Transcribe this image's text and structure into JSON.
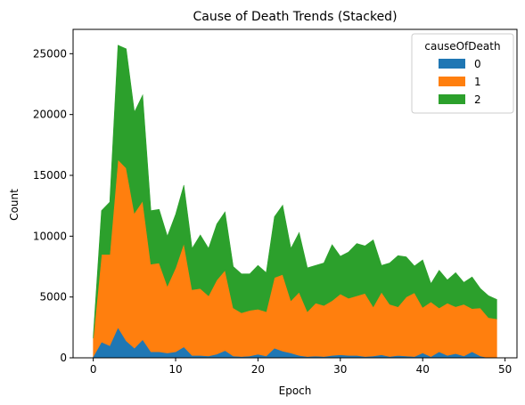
{
  "chart_data": {
    "type": "area",
    "stacked": true,
    "title": "Cause of Death Trends (Stacked)",
    "xlabel": "Epoch",
    "ylabel": "Count",
    "xlim": [
      -2.45,
      51.45
    ],
    "ylim": [
      0,
      27000
    ],
    "xticks": [
      0,
      10,
      20,
      30,
      40,
      50
    ],
    "yticks": [
      0,
      5000,
      10000,
      15000,
      20000,
      25000
    ],
    "grid": false,
    "legend": {
      "title": "causeOfDeath",
      "placement": "top-right"
    },
    "x": [
      0,
      1,
      2,
      3,
      4,
      5,
      6,
      7,
      8,
      9,
      10,
      11,
      12,
      13,
      14,
      15,
      16,
      17,
      18,
      19,
      20,
      21,
      22,
      23,
      24,
      25,
      26,
      27,
      28,
      29,
      30,
      31,
      32,
      33,
      34,
      35,
      36,
      37,
      38,
      39,
      40,
      41,
      42,
      43,
      44,
      45,
      46,
      47,
      48,
      49
    ],
    "series": [
      {
        "name": "0",
        "color": "#1f77b4",
        "values": [
          100,
          1300,
          1000,
          2500,
          1400,
          800,
          1500,
          500,
          500,
          400,
          500,
          900,
          200,
          200,
          150,
          300,
          600,
          150,
          100,
          150,
          300,
          150,
          800,
          550,
          400,
          200,
          100,
          150,
          100,
          200,
          250,
          200,
          200,
          100,
          150,
          250,
          100,
          200,
          150,
          100,
          400,
          100,
          500,
          200,
          350,
          150,
          500,
          150,
          0,
          0
        ]
      },
      {
        "name": "1",
        "color": "#ff7f0e",
        "values": [
          1500,
          7200,
          7500,
          13800,
          14200,
          11100,
          11400,
          7200,
          7300,
          5500,
          6900,
          8500,
          5400,
          5500,
          4950,
          6100,
          6600,
          3950,
          3600,
          3750,
          3700,
          3650,
          5800,
          6300,
          4300,
          5200,
          3700,
          4350,
          4200,
          4500,
          5000,
          4700,
          4900,
          5200,
          4050,
          5150,
          4300,
          4000,
          4850,
          5250,
          3750,
          4500,
          3600,
          4300,
          3850,
          4250,
          3550,
          3950,
          3300,
          3200
        ]
      },
      {
        "name": "2",
        "color": "#2ca02c",
        "values": [
          200,
          3600,
          4300,
          9400,
          9800,
          8300,
          8700,
          4400,
          4400,
          4100,
          4400,
          4800,
          3400,
          4400,
          3900,
          4600,
          4800,
          3400,
          3200,
          3000,
          3600,
          3200,
          5000,
          5700,
          4300,
          4900,
          3600,
          3100,
          3500,
          4600,
          3100,
          3800,
          4300,
          3900,
          5500,
          2200,
          3400,
          4200,
          3300,
          2200,
          3900,
          1500,
          3100,
          1900,
          2800,
          1800,
          2600,
          1600,
          1800,
          1600
        ]
      }
    ]
  }
}
